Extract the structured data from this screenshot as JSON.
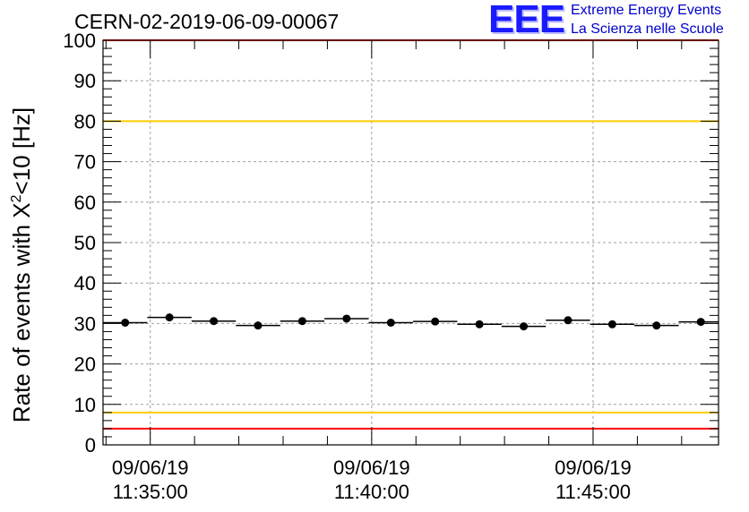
{
  "header": {
    "title": "CERN-02-2019-06-09-00067",
    "logo_text": "EEE",
    "logo_line1": "Extreme Energy Events",
    "logo_line2": "La Scienza nelle Scuole"
  },
  "chart_data": {
    "type": "scatter",
    "title": "CERN-02-2019-06-09-00067",
    "ylabel": "Rate of events with X²<10 [Hz]",
    "xlabel": "",
    "ylim": [
      0,
      100
    ],
    "yticks": [
      0,
      10,
      20,
      30,
      40,
      50,
      60,
      70,
      80,
      90,
      100
    ],
    "x_axis": {
      "type": "time",
      "range": [
        "11:33:56",
        "11:47:50"
      ],
      "ticks": [
        {
          "time": "11:35:00",
          "date": "09/06/19"
        },
        {
          "time": "11:40:00",
          "date": "09/06/19"
        },
        {
          "time": "11:45:00",
          "date": "09/06/19"
        }
      ]
    },
    "grid": true,
    "bin_width_seconds": 60,
    "series": [
      {
        "marker": "filled-circle",
        "color": "#000000",
        "points": [
          {
            "x": "11:34:26",
            "y": 30.2
          },
          {
            "x": "11:35:26",
            "y": 31.5
          },
          {
            "x": "11:36:26",
            "y": 30.6
          },
          {
            "x": "11:37:26",
            "y": 29.5
          },
          {
            "x": "11:38:26",
            "y": 30.6
          },
          {
            "x": "11:39:26",
            "y": 31.2
          },
          {
            "x": "11:40:26",
            "y": 30.2
          },
          {
            "x": "11:41:26",
            "y": 30.5
          },
          {
            "x": "11:42:26",
            "y": 29.8
          },
          {
            "x": "11:43:26",
            "y": 29.3
          },
          {
            "x": "11:44:26",
            "y": 30.8
          },
          {
            "x": "11:45:26",
            "y": 29.8
          },
          {
            "x": "11:46:26",
            "y": 29.5
          },
          {
            "x": "11:47:26",
            "y": 30.4
          }
        ]
      }
    ],
    "reference_lines": [
      {
        "y": 100,
        "color": "#ff0000"
      },
      {
        "y": 80,
        "color": "#ffcc00"
      },
      {
        "y": 8,
        "color": "#ffcc00"
      },
      {
        "y": 4,
        "color": "#ff0000"
      }
    ]
  }
}
